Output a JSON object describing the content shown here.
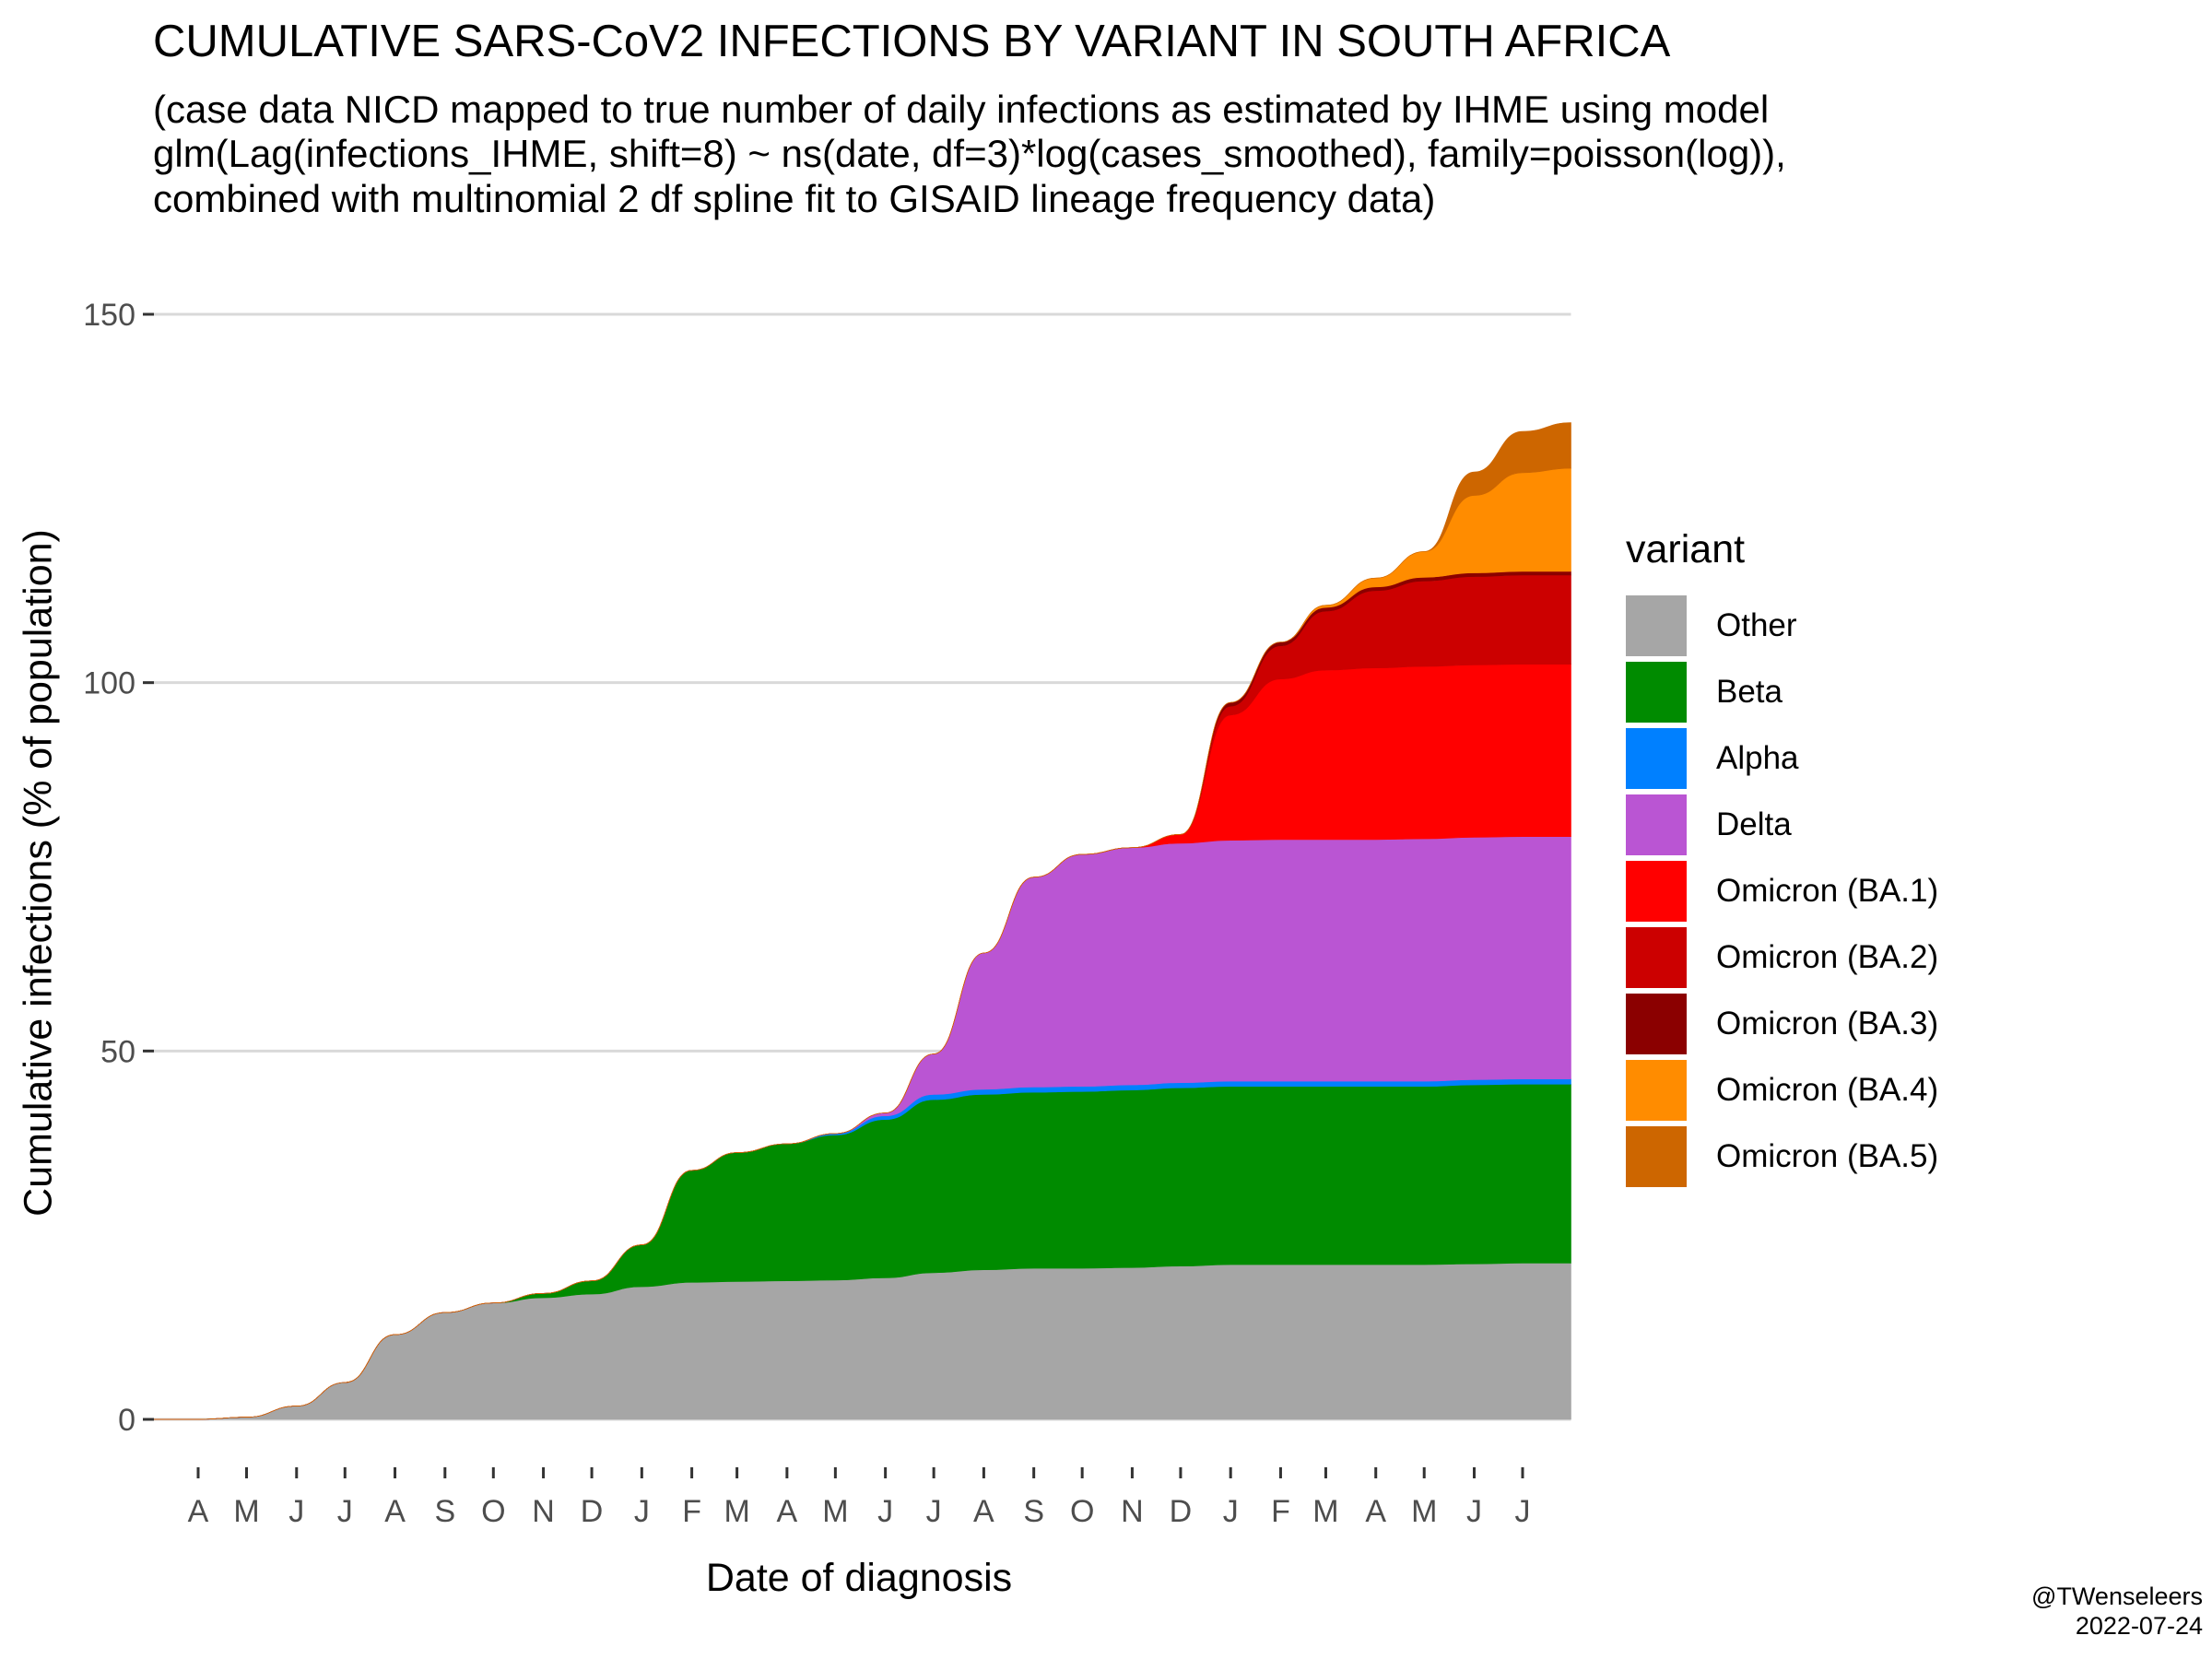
{
  "title": "CUMULATIVE SARS-CoV2 INFECTIONS BY VARIANT IN SOUTH AFRICA",
  "subtitle_lines": [
    "(case data NICD mapped to true number of daily infections as estimated by IHME using model",
    "glm(Lag(infections_IHME, shift=8) ~ ns(date, df=3)*log(cases_smoothed), family=poisson(log)),",
    "combined with multinomial 2 df spline fit to GISAID lineage frequency data)"
  ],
  "caption_lines": [
    "@TWenseleers",
    "2022-07-24"
  ],
  "chart_data": {
    "type": "area",
    "stacked": true,
    "ylabel": "Cumulative infections (% of population)",
    "xlabel": "Date of diagnosis",
    "ylim": [
      0,
      150
    ],
    "xlim": [
      "2020-03-01",
      "2022-07-31"
    ],
    "y_ticks": [
      0,
      50,
      100,
      150
    ],
    "x_tick_labels": [
      "A",
      "M",
      "J",
      "J",
      "A",
      "S",
      "O",
      "N",
      "D",
      "J",
      "F",
      "M",
      "A",
      "M",
      "J",
      "J",
      "A",
      "S",
      "O",
      "N",
      "D",
      "J",
      "F",
      "M",
      "A",
      "M",
      "J",
      "J"
    ],
    "grid": "horizontal major gridlines only",
    "legend": {
      "title": "variant",
      "position": "right"
    },
    "x": [
      "2020-03-01",
      "2020-04-01",
      "2020-05-01",
      "2020-06-01",
      "2020-07-01",
      "2020-08-01",
      "2020-09-01",
      "2020-10-01",
      "2020-11-01",
      "2020-12-01",
      "2021-01-01",
      "2021-02-01",
      "2021-03-01",
      "2021-04-01",
      "2021-05-01",
      "2021-06-01",
      "2021-07-01",
      "2021-08-01",
      "2021-09-01",
      "2021-10-01",
      "2021-11-01",
      "2021-12-01",
      "2022-01-01",
      "2022-02-01",
      "2022-03-01",
      "2022-04-01",
      "2022-05-01",
      "2022-06-01",
      "2022-07-01",
      "2022-07-31"
    ],
    "series": [
      {
        "name": "Other",
        "color": "#A6A6A6",
        "values": [
          0,
          0,
          0.3,
          1.8,
          5,
          11.5,
          14.5,
          15.8,
          16.5,
          17,
          18,
          18.6,
          18.7,
          18.8,
          18.9,
          19.2,
          19.9,
          20.3,
          20.5,
          20.5,
          20.6,
          20.8,
          21,
          21,
          21,
          21,
          21,
          21.1,
          21.2,
          21.2
        ]
      },
      {
        "name": "Beta",
        "color": "#008B00",
        "values": [
          0,
          0,
          0,
          0,
          0,
          0,
          0,
          0,
          0.6,
          1.8,
          5.7,
          15.2,
          17.5,
          18.6,
          19.7,
          21.5,
          23.5,
          23.8,
          23.9,
          24,
          24.1,
          24.2,
          24.2,
          24.2,
          24.2,
          24.2,
          24.2,
          24.3,
          24.3,
          24.3
        ]
      },
      {
        "name": "Alpha",
        "color": "#0080FF",
        "values": [
          0,
          0,
          0,
          0,
          0,
          0,
          0,
          0,
          0,
          0,
          0,
          0,
          0,
          0,
          0.2,
          0.5,
          0.7,
          0.7,
          0.7,
          0.7,
          0.7,
          0.7,
          0.7,
          0.7,
          0.7,
          0.7,
          0.7,
          0.7,
          0.7,
          0.7
        ]
      },
      {
        "name": "Delta",
        "color": "#BA55D3",
        "values": [
          0,
          0,
          0,
          0,
          0,
          0,
          0,
          0,
          0,
          0,
          0,
          0,
          0,
          0,
          0,
          0.4,
          5.5,
          18.5,
          28.5,
          31.5,
          32.2,
          32.5,
          32.7,
          32.8,
          32.8,
          32.8,
          32.9,
          32.9,
          32.9,
          32.9
        ]
      },
      {
        "name": "Omicron (BA.1)",
        "color": "#FF0000",
        "values": [
          0,
          0,
          0,
          0,
          0,
          0,
          0,
          0,
          0,
          0,
          0,
          0,
          0,
          0,
          0,
          0,
          0,
          0,
          0,
          0,
          0,
          1.2,
          17,
          21.8,
          23,
          23.3,
          23.4,
          23.4,
          23.4,
          23.4
        ]
      },
      {
        "name": "Omicron (BA.2)",
        "color": "#CC0000",
        "values": [
          0,
          0,
          0,
          0,
          0,
          0,
          0,
          0,
          0,
          0,
          0,
          0,
          0,
          0,
          0,
          0,
          0,
          0,
          0,
          0,
          0,
          0,
          1.2,
          4.5,
          8,
          10.5,
          11.6,
          12,
          12.1,
          12.1
        ]
      },
      {
        "name": "Omicron (BA.3)",
        "color": "#8B0000",
        "values": [
          0,
          0,
          0,
          0,
          0,
          0,
          0,
          0,
          0,
          0,
          0,
          0,
          0,
          0,
          0,
          0,
          0,
          0,
          0,
          0,
          0,
          0,
          0.5,
          0.5,
          0.5,
          0.5,
          0.5,
          0.5,
          0.5,
          0.5
        ]
      },
      {
        "name": "Omicron (BA.4)",
        "color": "#FF8C00",
        "values": [
          0,
          0,
          0,
          0,
          0,
          0,
          0,
          0,
          0,
          0,
          0,
          0,
          0,
          0,
          0,
          0,
          0,
          0,
          0,
          0,
          0,
          0,
          0,
          0,
          0.3,
          1.2,
          3.5,
          10.5,
          13.4,
          14
        ]
      },
      {
        "name": "Omicron (BA.5)",
        "color": "#CD6600",
        "values": [
          0,
          0,
          0,
          0,
          0,
          0,
          0,
          0,
          0,
          0,
          0,
          0,
          0,
          0,
          0,
          0,
          0,
          0,
          0,
          0,
          0,
          0,
          0,
          0,
          0,
          0,
          0,
          3.2,
          5.6,
          6.2
        ]
      }
    ]
  }
}
